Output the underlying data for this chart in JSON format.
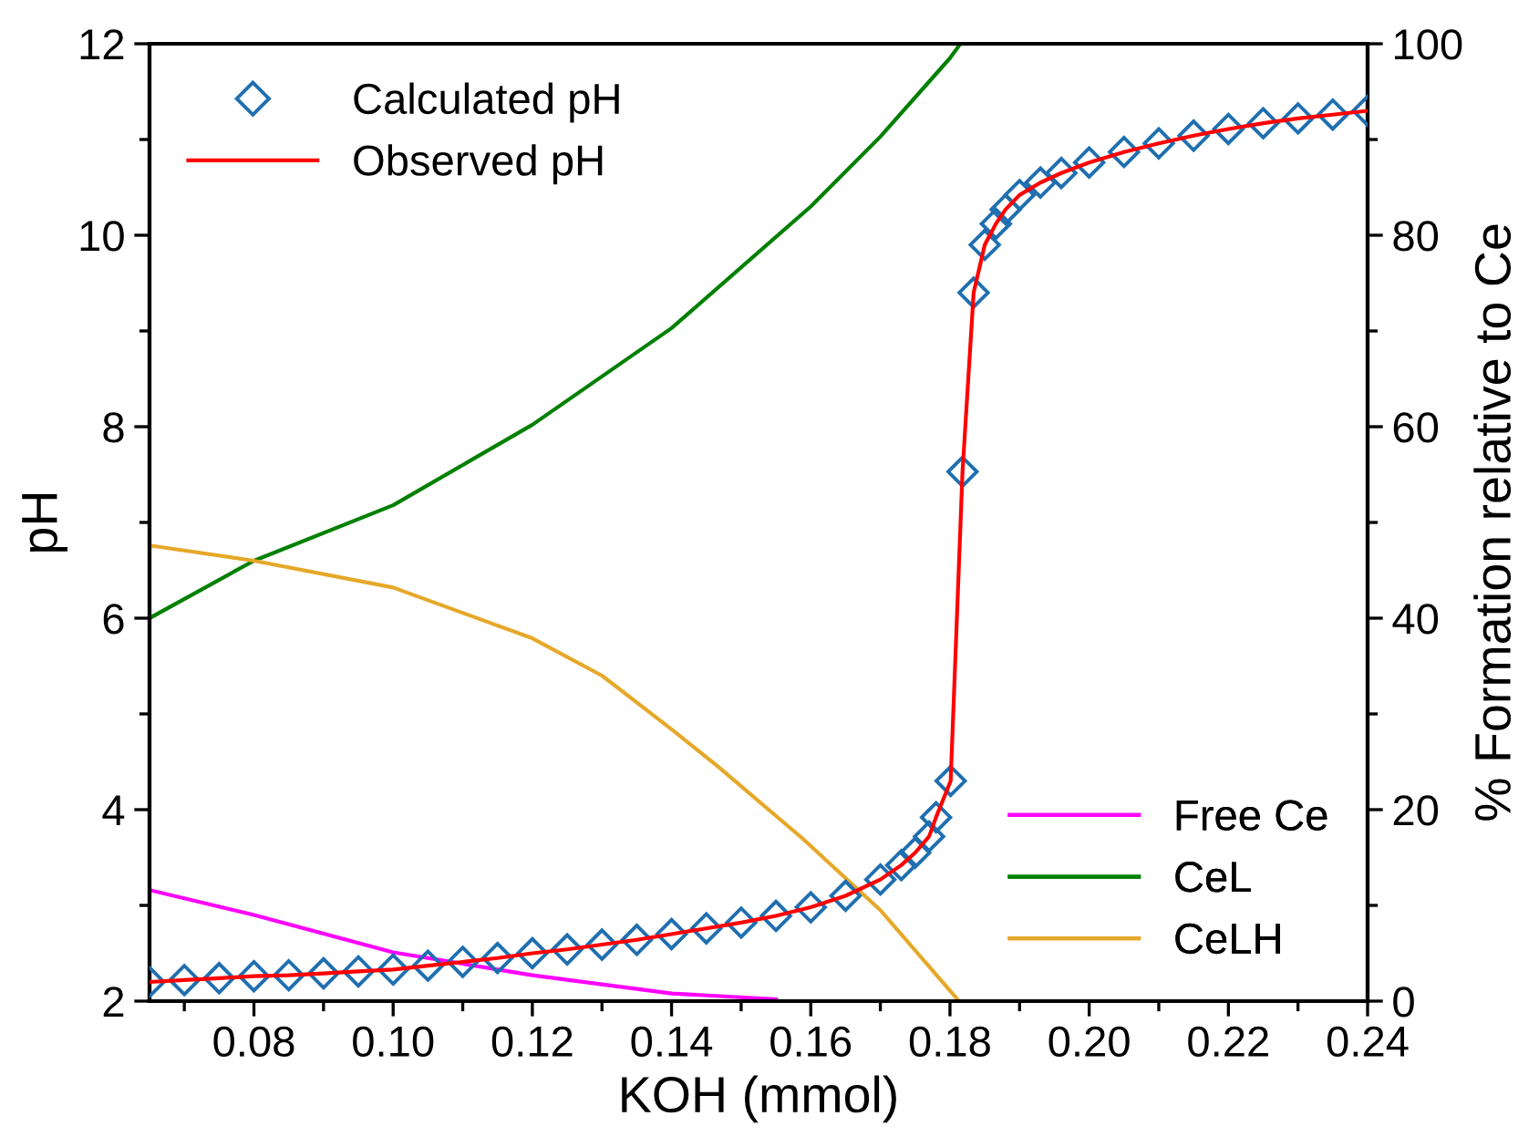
{
  "chart_data": {
    "type": "line",
    "xlabel": "KOH (mmol)",
    "ylabel": "pH",
    "y2label": "% Formation relative to Ce",
    "x": [
      0.065,
      0.07,
      0.075,
      0.08,
      0.085,
      0.09,
      0.095,
      0.1,
      0.105,
      0.11,
      0.115,
      0.12,
      0.125,
      0.13,
      0.135,
      0.14,
      0.145,
      0.15,
      0.155,
      0.16,
      0.165,
      0.17,
      0.173,
      0.175,
      0.177,
      0.178,
      0.1801,
      0.1818,
      0.1834,
      0.185,
      0.1866,
      0.188,
      0.19,
      0.193,
      0.196,
      0.2,
      0.205,
      0.21,
      0.215,
      0.22,
      0.225,
      0.23,
      0.235,
      0.24
    ],
    "series": [
      {
        "name": "Calculated pH",
        "type": "scatter",
        "marker": "diamond",
        "color": "#1f6fb0",
        "values": [
          2.2,
          2.22,
          2.24,
          2.26,
          2.27,
          2.29,
          2.31,
          2.33,
          2.37,
          2.41,
          2.45,
          2.5,
          2.54,
          2.59,
          2.64,
          2.7,
          2.76,
          2.82,
          2.89,
          2.98,
          3.1,
          3.27,
          3.42,
          3.55,
          3.72,
          3.92,
          4.3,
          7.53,
          9.4,
          9.9,
          10.12,
          10.27,
          10.42,
          10.55,
          10.65,
          10.76,
          10.87,
          10.96,
          11.04,
          11.11,
          11.17,
          11.22,
          11.26,
          11.3
        ]
      },
      {
        "name": "Observed pH",
        "color": "#ff0000",
        "values": [
          2.2,
          2.22,
          2.24,
          2.26,
          2.27,
          2.29,
          2.31,
          2.33,
          2.37,
          2.41,
          2.45,
          2.5,
          2.54,
          2.59,
          2.64,
          2.7,
          2.76,
          2.82,
          2.89,
          2.98,
          3.1,
          3.27,
          3.42,
          3.55,
          3.72,
          3.92,
          4.3,
          7.53,
          9.4,
          9.9,
          10.12,
          10.27,
          10.42,
          10.55,
          10.65,
          10.76,
          10.87,
          10.96,
          11.04,
          11.11,
          11.17,
          11.22,
          11.26,
          11.3
        ]
      },
      {
        "name": "Free Ce",
        "axis": "y2",
        "color": "#ff00ff",
        "x": [
          0.065,
          0.08,
          0.1,
          0.12,
          0.14,
          0.155
        ],
        "values": [
          11.6,
          9.0,
          5.1,
          2.7,
          0.8,
          0.2
        ]
      },
      {
        "name": "CeL",
        "axis": "y2",
        "color": "#008000",
        "x": [
          0.065,
          0.08,
          0.1,
          0.12,
          0.14,
          0.16,
          0.17,
          0.18,
          0.1815
        ],
        "values": [
          40,
          46,
          51.8,
          60.2,
          70.3,
          83,
          90.3,
          98.5,
          100
        ]
      },
      {
        "name": "CeLH",
        "axis": "y2",
        "color": "#e6a829",
        "x": [
          0.065,
          0.08,
          0.1,
          0.12,
          0.13,
          0.14,
          0.1465,
          0.1588,
          0.17,
          0.1813
        ],
        "values": [
          47.6,
          46,
          43.2,
          37.9,
          34,
          28.4,
          24.6,
          17,
          9.5,
          0
        ]
      }
    ],
    "xlim": [
      0.065,
      0.24
    ],
    "xticks": [
      {
        "value": 0.08,
        "label": "0.08"
      },
      {
        "value": 0.1,
        "label": "0.10"
      },
      {
        "value": 0.12,
        "label": "0.12"
      },
      {
        "value": 0.14,
        "label": "0.14"
      },
      {
        "value": 0.16,
        "label": "0.16"
      },
      {
        "value": 0.18,
        "label": "0.18"
      },
      {
        "value": 0.2,
        "label": "0.20"
      },
      {
        "value": 0.22,
        "label": "0.22"
      },
      {
        "value": 0.24,
        "label": "0.24"
      }
    ],
    "ylim": [
      2,
      12
    ],
    "yticks": [
      2,
      4,
      6,
      8,
      10,
      12
    ],
    "y2lim": [
      0,
      100
    ],
    "y2ticks": [
      0,
      20,
      40,
      60,
      80,
      100
    ],
    "legend": "top left",
    "grid": false
  }
}
